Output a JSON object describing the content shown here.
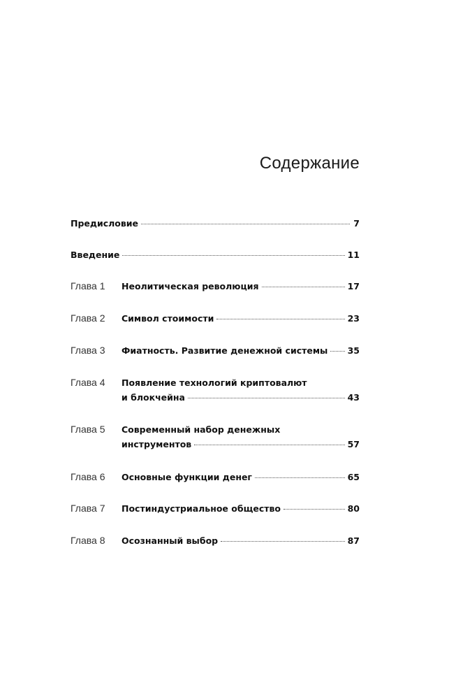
{
  "title": "Содержание",
  "entries": [
    {
      "label": "",
      "lines": [
        "Предисловие"
      ],
      "page": "7"
    },
    {
      "label": "",
      "lines": [
        "Введение"
      ],
      "page": "11"
    },
    {
      "label": "Глава 1",
      "lines": [
        "Неолитическая революция"
      ],
      "page": "17"
    },
    {
      "label": "Глава 2",
      "lines": [
        "Символ стоимости"
      ],
      "page": "23"
    },
    {
      "label": "Глава 3",
      "lines": [
        "Фиатность. Развитие денежной системы"
      ],
      "page": "35"
    },
    {
      "label": "Глава 4",
      "lines": [
        "Появление технологий криптовалют",
        "и блокчейна"
      ],
      "page": "43"
    },
    {
      "label": "Глава 5",
      "lines": [
        "Современный набор денежных",
        "инструментов"
      ],
      "page": "57"
    },
    {
      "label": "Глава 6",
      "lines": [
        "Основные функции денег"
      ],
      "page": "65"
    },
    {
      "label": "Глава 7",
      "lines": [
        "Постиндустриальное общество"
      ],
      "page": "80"
    },
    {
      "label": "Глава 8",
      "lines": [
        "Осознанный выбор"
      ],
      "page": "87"
    }
  ]
}
